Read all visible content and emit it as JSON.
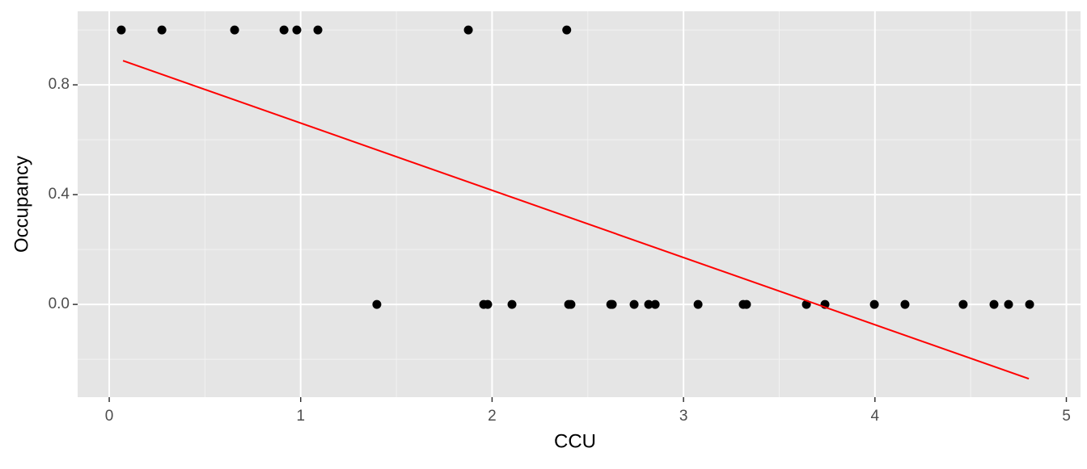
{
  "chart_data": {
    "type": "scatter",
    "x_label": "CCU",
    "y_label": "Occupancy",
    "xlim": [
      -0.165,
      5.074
    ],
    "ylim": [
      -0.338,
      1.068
    ],
    "xticks": [
      0,
      1,
      2,
      3,
      4,
      5
    ],
    "yticks": [
      {
        "value": 0,
        "label": "0.0"
      },
      0.4,
      0.8
    ],
    "x_minor_breaks": [
      0.5,
      1.5,
      2.5,
      3.5,
      4.5
    ],
    "y_minor_breaks": [
      -0.2,
      0.2,
      0.6,
      1.0
    ],
    "grid": true,
    "series": [
      {
        "color": "#000000",
        "x": [
          0.063,
          0.275,
          0.655,
          0.913,
          0.98,
          1.09,
          1.876,
          2.39,
          1.398,
          1.956,
          1.977,
          2.104,
          2.4,
          2.412,
          2.62,
          2.628,
          2.742,
          2.818,
          2.852,
          3.076,
          3.312,
          3.329,
          3.642,
          3.739,
          3.997,
          4.157,
          4.461,
          4.622,
          4.698,
          4.808
        ],
        "values": [
          1,
          1,
          1,
          1,
          1,
          1,
          1,
          1,
          0,
          0,
          0,
          0,
          0,
          0,
          0,
          0,
          0,
          0,
          0,
          0,
          0,
          0,
          0,
          0,
          0,
          0,
          0,
          0,
          0,
          0
        ]
      }
    ],
    "fit": {
      "color": "#ff0000",
      "x": [
        0.072,
        4.804
      ],
      "values": [
        0.888,
        -0.271
      ]
    }
  }
}
